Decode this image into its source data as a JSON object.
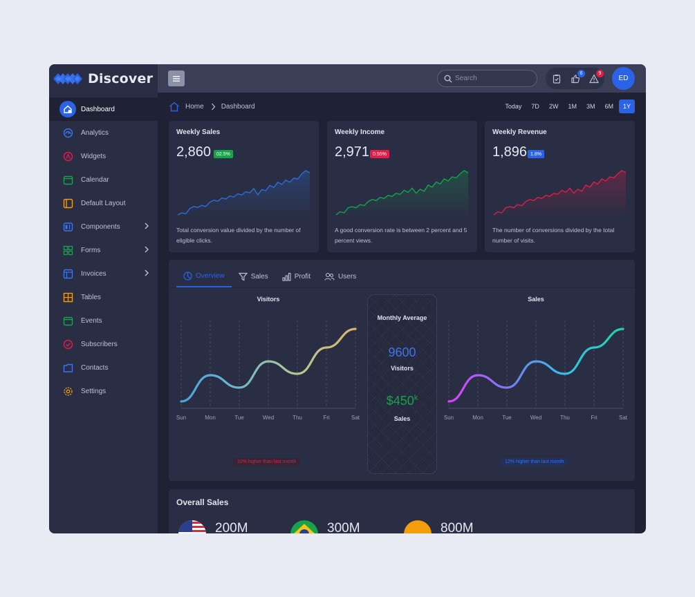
{
  "app": {
    "brand": "Discover"
  },
  "sidebar": {
    "items": [
      {
        "label": "Dashboard"
      },
      {
        "label": "Analytics"
      },
      {
        "label": "Widgets"
      },
      {
        "label": "Calendar"
      },
      {
        "label": "Default Layout"
      },
      {
        "label": "Components"
      },
      {
        "label": "Forms"
      },
      {
        "label": "Invoices"
      },
      {
        "label": "Tables"
      },
      {
        "label": "Events"
      },
      {
        "label": "Subscribers"
      },
      {
        "label": "Contacts"
      },
      {
        "label": "Settings"
      }
    ]
  },
  "topbar": {
    "search_placeholder": "Search",
    "badges": {
      "likes": "6",
      "alerts": "9"
    },
    "avatar_initials": "ED"
  },
  "breadcrumb": {
    "home": "Home",
    "current": "Dashboard"
  },
  "ranges": [
    "Today",
    "7D",
    "2W",
    "1M",
    "3M",
    "6M",
    "1Y"
  ],
  "stats": [
    {
      "title": "Weekly Sales",
      "value": "2,860",
      "change": "02.5%",
      "description": "Total conversion value divided by the number of eligible clicks.",
      "color": "#2b6fd6",
      "series": [
        3,
        5,
        4,
        9,
        11,
        10,
        12,
        11,
        15,
        17,
        16,
        19,
        18,
        21,
        20,
        23,
        22,
        25,
        24,
        28,
        22,
        27,
        26,
        31,
        29,
        34,
        32,
        36,
        34,
        38,
        37,
        42,
        45,
        43
      ]
    },
    {
      "title": "Weekly Income",
      "value": "2,971",
      "change": "0.55%",
      "description": "A good conversion rate is between 2 percent and 5 percent views.",
      "color": "#16a34a",
      "series": [
        3,
        6,
        5,
        10,
        11,
        10,
        13,
        12,
        16,
        18,
        17,
        20,
        19,
        22,
        21,
        24,
        23,
        27,
        25,
        29,
        24,
        28,
        26,
        32,
        30,
        35,
        33,
        38,
        36,
        40,
        39,
        43,
        46,
        44
      ]
    },
    {
      "title": "Weekly Revenue",
      "value": "1,896",
      "change": "1.8%",
      "description": "The number of conversions divided by the total number of visits.",
      "color": "#e11d48",
      "series": [
        4,
        7,
        6,
        11,
        12,
        11,
        14,
        13,
        17,
        19,
        18,
        21,
        20,
        23,
        22,
        25,
        24,
        28,
        26,
        30,
        25,
        29,
        27,
        33,
        31,
        36,
        34,
        39,
        37,
        41,
        40,
        44,
        47,
        45
      ]
    }
  ],
  "tabs": [
    {
      "label": "Overview"
    },
    {
      "label": "Sales"
    },
    {
      "label": "Profit"
    },
    {
      "label": "Users"
    }
  ],
  "overview": {
    "visitors_title": "Visitors",
    "sales_title": "Sales",
    "monthly_title": "Monthly Average",
    "monthly_visitors": "9600",
    "monthly_visitors_label": "Visitors",
    "monthly_sales": "$450",
    "monthly_sales_suffix": "k",
    "monthly_sales_label": "Sales",
    "visitors_note": "10% higher than last month",
    "sales_note": "12% higher than last month"
  },
  "chart_data": [
    {
      "type": "line",
      "title": "Visitors",
      "categories": [
        "Sun",
        "Mon",
        "Tue",
        "Wed",
        "Thu",
        "Fri",
        "Sat"
      ],
      "values": [
        10,
        48,
        30,
        68,
        50,
        88,
        115
      ],
      "ylim": [
        0,
        125
      ],
      "grid": "vertical-dashed"
    },
    {
      "type": "line",
      "title": "Sales",
      "categories": [
        "Sun",
        "Mon",
        "Tue",
        "Wed",
        "Thu",
        "Fri",
        "Sat"
      ],
      "values": [
        10,
        48,
        30,
        68,
        50,
        88,
        115
      ],
      "ylim": [
        0,
        125
      ],
      "grid": "vertical-dashed"
    }
  ],
  "overall_sales": {
    "title": "Overall Sales",
    "items": [
      {
        "value": "200M"
      },
      {
        "value": "300M"
      },
      {
        "value": "800M"
      }
    ]
  },
  "colors": {
    "accent": "#2b63e6",
    "green": "#16a34a",
    "red": "#e11d48",
    "orange": "#f59e0b"
  }
}
